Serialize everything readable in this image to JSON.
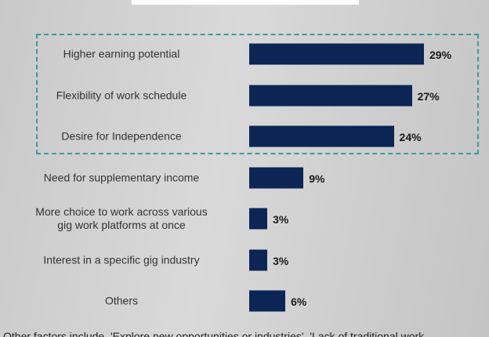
{
  "chart_data": {
    "type": "bar",
    "orientation": "horizontal",
    "categories": [
      "Higher earning potential",
      "Flexibility of work schedule",
      "Desire for Independence",
      "Need for supplementary income",
      "More choice to work across various\ngig work platforms at once",
      "Interest in a specific gig industry",
      "Others"
    ],
    "values": [
      29,
      27,
      24,
      9,
      3,
      3,
      6
    ],
    "value_labels": [
      "29%",
      "27%",
      "24%",
      "9%",
      "3%",
      "3%",
      "6%"
    ],
    "color": "#0c2555",
    "xlim": [
      0,
      29
    ],
    "footnote": "Other factors include, 'Explore new opportunities or industries', 'Lack of traditional work"
  }
}
